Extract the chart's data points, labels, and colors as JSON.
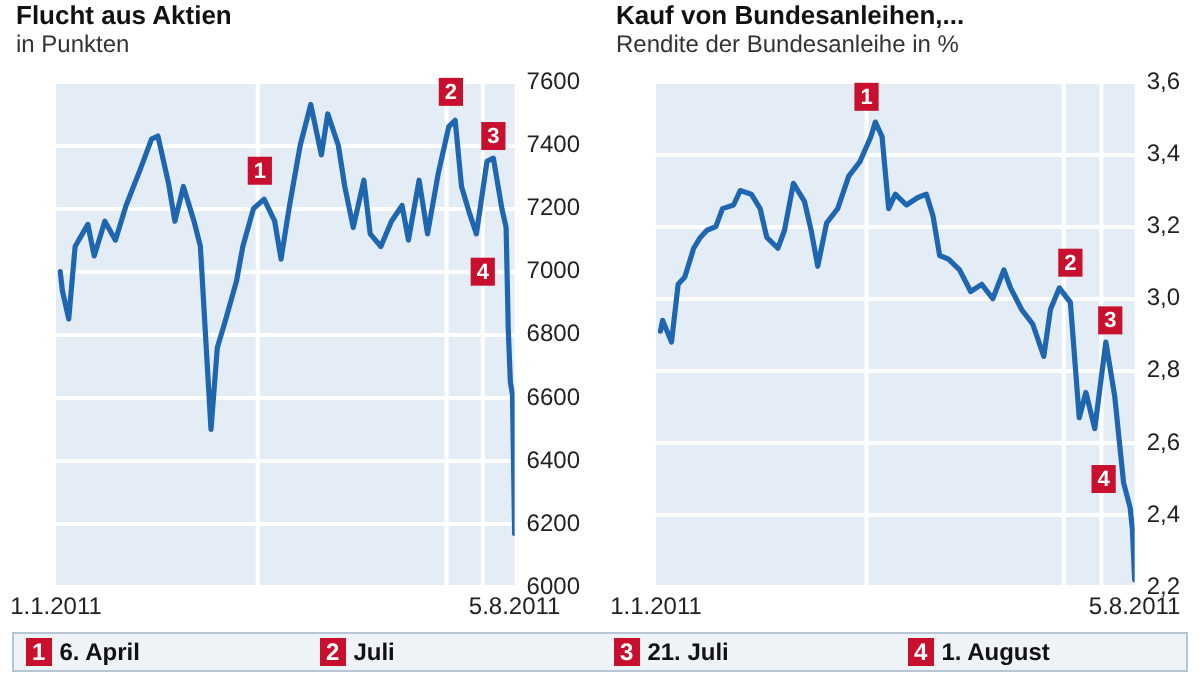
{
  "chart_data": [
    {
      "type": "line",
      "title": "Flucht aus Aktien",
      "subtitle": "in Punkten",
      "x": [
        "2011-01-03",
        "2011-01-04",
        "2011-01-07",
        "2011-01-10",
        "2011-01-16",
        "2011-01-19",
        "2011-01-24",
        "2011-01-29",
        "2011-02-03",
        "2011-02-10",
        "2011-02-15",
        "2011-02-18",
        "2011-02-23",
        "2011-02-26",
        "2011-03-02",
        "2011-03-07",
        "2011-03-10",
        "2011-03-15",
        "2011-03-18",
        "2011-03-22",
        "2011-03-27",
        "2011-03-30",
        "2011-04-04",
        "2011-04-09",
        "2011-04-14",
        "2011-04-17",
        "2011-04-21",
        "2011-04-26",
        "2011-05-01",
        "2011-05-06",
        "2011-05-09",
        "2011-05-14",
        "2011-05-17",
        "2011-05-21",
        "2011-05-26",
        "2011-05-29",
        "2011-06-03",
        "2011-06-08",
        "2011-06-13",
        "2011-06-16",
        "2011-06-21",
        "2011-06-25",
        "2011-06-30",
        "2011-07-05",
        "2011-07-08",
        "2011-07-11",
        "2011-07-15",
        "2011-07-18",
        "2011-07-23",
        "2011-07-26",
        "2011-07-30",
        "2011-08-01",
        "2011-08-02",
        "2011-08-03",
        "2011-08-04",
        "2011-08-05"
      ],
      "series": [
        {
          "color": "#1f66b0",
          "values": [
            7000,
            6940,
            6850,
            7080,
            7150,
            7050,
            7160,
            7100,
            7210,
            7330,
            7420,
            7430,
            7280,
            7160,
            7270,
            7160,
            7080,
            6500,
            6760,
            6850,
            6970,
            7080,
            7200,
            7230,
            7160,
            7040,
            7210,
            7400,
            7530,
            7370,
            7500,
            7400,
            7270,
            7140,
            7290,
            7120,
            7080,
            7160,
            7210,
            7100,
            7290,
            7120,
            7310,
            7460,
            7480,
            7270,
            7180,
            7120,
            7350,
            7360,
            7200,
            7140,
            6820,
            6650,
            6610,
            6170
          ]
        }
      ],
      "xlim": [
        "2011-01-01",
        "2011-08-05"
      ],
      "xticks": [
        {
          "value": "2011-01-01",
          "label": "1.1.2011"
        },
        {
          "value": "2011-08-05",
          "label": "5.8.2011"
        }
      ],
      "ylim": [
        6000,
        7600
      ],
      "yticks": [
        6000,
        6200,
        6400,
        6600,
        6800,
        7000,
        7200,
        7400,
        7600
      ],
      "grid": "y",
      "marker": "none",
      "line_style": "solid",
      "ref_lines": [
        {
          "axis": "x",
          "value": "2011-04-06",
          "color": "#ffffff"
        },
        {
          "axis": "x",
          "value": "2011-07-04",
          "color": "#ffffff"
        },
        {
          "axis": "x",
          "value": "2011-07-21",
          "color": "#ffffff"
        }
      ],
      "annotations": [
        {
          "text": "1",
          "x": "2011-04-07",
          "y": 7320
        },
        {
          "text": "2",
          "x": "2011-07-06",
          "y": 7570
        },
        {
          "text": "3",
          "x": "2011-07-26",
          "y": 7430
        },
        {
          "text": "4",
          "x": "2011-07-21",
          "y": 7000
        },
        "1 6. April",
        "2 Juli"
      ]
    },
    {
      "type": "line",
      "title": "Kauf von Bundesanleihen,...",
      "subtitle": "Rendite der Bundesanleihe in %",
      "x": [
        "2011-01-03",
        "2011-01-04",
        "2011-01-08",
        "2011-01-11",
        "2011-01-14",
        "2011-01-18",
        "2011-01-21",
        "2011-01-24",
        "2011-01-28",
        "2011-01-31",
        "2011-02-05",
        "2011-02-08",
        "2011-02-13",
        "2011-02-17",
        "2011-02-20",
        "2011-02-25",
        "2011-02-28",
        "2011-03-04",
        "2011-03-09",
        "2011-03-12",
        "2011-03-15",
        "2011-03-19",
        "2011-03-24",
        "2011-03-29",
        "2011-04-03",
        "2011-04-08",
        "2011-04-10",
        "2011-04-13",
        "2011-04-16",
        "2011-04-19",
        "2011-04-24",
        "2011-04-29",
        "2011-05-03",
        "2011-05-06",
        "2011-05-09",
        "2011-05-13",
        "2011-05-18",
        "2011-05-23",
        "2011-05-28",
        "2011-06-02",
        "2011-06-07",
        "2011-06-10",
        "2011-06-15",
        "2011-06-20",
        "2011-06-25",
        "2011-06-28",
        "2011-07-02",
        "2011-07-07",
        "2011-07-11",
        "2011-07-14",
        "2011-07-18",
        "2011-07-23",
        "2011-07-27",
        "2011-07-31",
        "2011-08-03",
        "2011-08-04",
        "2011-08-05"
      ],
      "series": [
        {
          "color": "#1f66b0",
          "values": [
            2.91,
            2.94,
            2.88,
            3.04,
            3.06,
            3.14,
            3.17,
            3.19,
            3.2,
            3.25,
            3.26,
            3.3,
            3.29,
            3.25,
            3.17,
            3.14,
            3.19,
            3.32,
            3.27,
            3.19,
            3.09,
            3.21,
            3.25,
            3.34,
            3.38,
            3.45,
            3.49,
            3.45,
            3.25,
            3.29,
            3.26,
            3.28,
            3.29,
            3.23,
            3.12,
            3.11,
            3.08,
            3.02,
            3.04,
            3.0,
            3.08,
            3.03,
            2.97,
            2.93,
            2.84,
            2.97,
            3.03,
            2.99,
            2.67,
            2.74,
            2.64,
            2.88,
            2.73,
            2.49,
            2.42,
            2.36,
            2.22
          ]
        }
      ],
      "xlim": [
        "2011-01-01",
        "2011-08-05"
      ],
      "xticks": [
        {
          "value": "2011-01-01",
          "label": "1.1.2011"
        },
        {
          "value": "2011-08-05",
          "label": "5.8.2011"
        }
      ],
      "ylim": [
        2.2,
        3.6
      ],
      "yticks": [
        {
          "value": 2.2,
          "label": "2,2"
        },
        {
          "value": 2.4,
          "label": "2,4"
        },
        {
          "value": 2.6,
          "label": "2,6"
        },
        {
          "value": 2.8,
          "label": "2,8"
        },
        {
          "value": 3.0,
          "label": "3,0"
        },
        {
          "value": 3.2,
          "label": "3,2"
        },
        {
          "value": 3.4,
          "label": "3,4"
        },
        {
          "value": 3.6,
          "label": "3,6"
        }
      ],
      "grid": "y",
      "marker": "none",
      "line_style": "solid",
      "ref_lines": [
        {
          "axis": "x",
          "value": "2011-04-06",
          "color": "#ffffff"
        },
        {
          "axis": "x",
          "value": "2011-07-04",
          "color": "#ffffff"
        },
        {
          "axis": "x",
          "value": "2011-07-21",
          "color": "#ffffff"
        }
      ],
      "annotations": [
        {
          "text": "1",
          "x": "2011-04-06",
          "y": 3.56
        },
        {
          "text": "2",
          "x": "2011-07-07",
          "y": 3.1
        },
        {
          "text": "3",
          "x": "2011-07-25",
          "y": 2.94
        },
        {
          "text": "4",
          "x": "2011-07-22",
          "y": 2.5
        },
        "3 21. Juli",
        "4 1. August"
      ]
    }
  ]
}
